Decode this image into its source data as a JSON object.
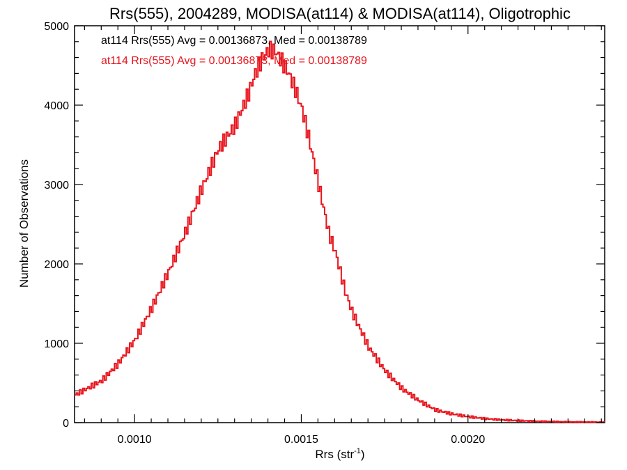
{
  "chart_data": {
    "type": "histogram",
    "title": "Rrs(555), 2004289, MODISA(at114) & MODISA(at114), Oligotrophic",
    "xlabel": "Rrs (str",
    "xlabel_sup": "-1",
    "xlabel_close": ")",
    "ylabel": "Number of Observations",
    "xlim": [
      0.00082,
      0.00241
    ],
    "ylim": [
      0,
      5000
    ],
    "x_ticks": [
      0.001,
      0.0015,
      0.002
    ],
    "x_tick_labels": [
      "0.0010",
      "0.0015",
      "0.0020"
    ],
    "y_ticks": [
      0,
      1000,
      2000,
      3000,
      4000,
      5000
    ],
    "y_tick_labels": [
      "0",
      "1000",
      "2000",
      "3000",
      "4000",
      "5000"
    ],
    "grid": false,
    "legend_position": "top-left",
    "bin_width": 5e-06,
    "series": [
      {
        "name": "at114 Rrs(555) Avg = 0.00136873, Med = 0.00138789",
        "color": "#000000",
        "visible_in_plot": false,
        "x": [
          0.00082,
          0.0009,
          0.00095,
          0.001,
          0.00105,
          0.0011,
          0.00115,
          0.0012,
          0.00125,
          0.0013,
          0.00132,
          0.00134,
          0.00136,
          0.00138,
          0.0014,
          0.00142,
          0.00144,
          0.00146,
          0.00148,
          0.0015,
          0.00152,
          0.00155,
          0.00158,
          0.0016,
          0.00163,
          0.00165,
          0.0017,
          0.00175,
          0.0018,
          0.00185,
          0.0019,
          0.00195,
          0.002,
          0.00205,
          0.0021,
          0.00215,
          0.0022,
          0.00225,
          0.0023,
          0.00235,
          0.00241
        ],
        "y": [
          350,
          530,
          750,
          1050,
          1450,
          1900,
          2400,
          2950,
          3450,
          3750,
          3950,
          4150,
          4400,
          4580,
          4700,
          4680,
          4550,
          4400,
          4200,
          3950,
          3600,
          3000,
          2400,
          2150,
          1650,
          1400,
          950,
          650,
          430,
          280,
          160,
          110,
          75,
          50,
          35,
          25,
          18,
          14,
          10,
          8,
          6
        ]
      },
      {
        "name": "at114 Rrs(555) Avg = 0.00136873, Med = 0.00138789",
        "color": "#e8141c",
        "visible_in_plot": true,
        "x": [
          0.00082,
          0.0009,
          0.00095,
          0.001,
          0.00105,
          0.0011,
          0.00115,
          0.0012,
          0.00125,
          0.0013,
          0.00132,
          0.00134,
          0.00136,
          0.00138,
          0.0014,
          0.00142,
          0.00144,
          0.00146,
          0.00148,
          0.0015,
          0.00152,
          0.00155,
          0.00158,
          0.0016,
          0.00163,
          0.00165,
          0.0017,
          0.00175,
          0.0018,
          0.00185,
          0.0019,
          0.00195,
          0.002,
          0.00205,
          0.0021,
          0.00215,
          0.0022,
          0.00225,
          0.0023,
          0.00235,
          0.00241
        ],
        "y": [
          350,
          530,
          750,
          1050,
          1450,
          1900,
          2400,
          2950,
          3450,
          3750,
          3950,
          4150,
          4400,
          4580,
          4700,
          4680,
          4550,
          4400,
          4200,
          3950,
          3600,
          3000,
          2400,
          2150,
          1650,
          1400,
          950,
          650,
          430,
          280,
          160,
          110,
          75,
          50,
          35,
          25,
          18,
          14,
          10,
          8,
          6
        ]
      }
    ]
  }
}
